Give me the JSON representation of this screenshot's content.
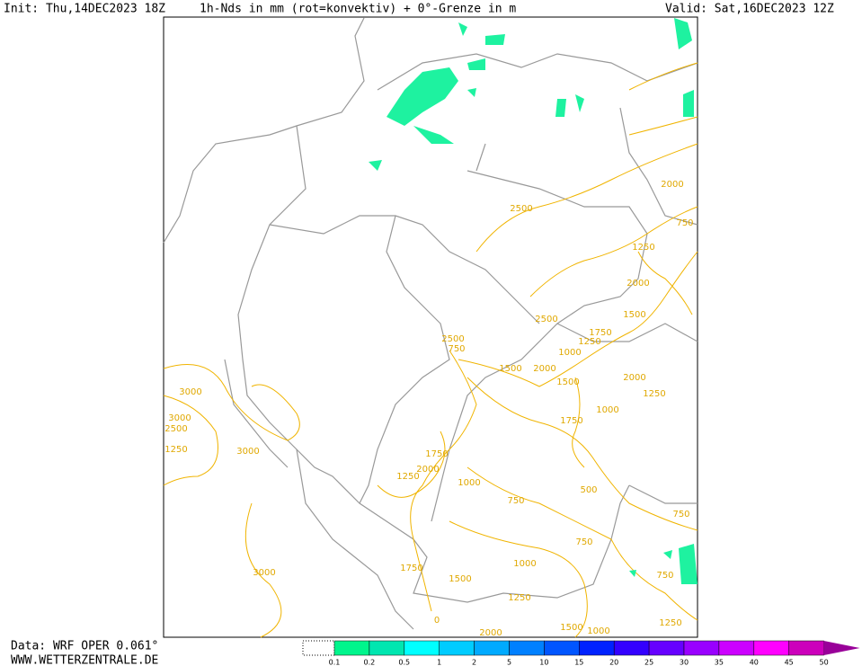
{
  "header": {
    "init": "Init: Thu,14DEC2023 18Z",
    "title": "1h-Nds in mm (rot=konvektiv) + 0°-Grenze in m",
    "valid": "Valid: Sat,16DEC2023 12Z"
  },
  "footer": {
    "data": "Data: WRF OPER 0.061°",
    "site": "WWW.WETTERZENTRALE.DE"
  },
  "legend": {
    "labels": [
      "0.1",
      "0.2",
      "0.5",
      "1",
      "2",
      "5",
      "10",
      "15",
      "20",
      "25",
      "30",
      "35",
      "40",
      "45",
      "50"
    ],
    "colors": [
      "#00f58c",
      "#00e6b0",
      "#00ffff",
      "#00ccff",
      "#00aaff",
      "#0080ff",
      "#0055ff",
      "#0022ff",
      "#3300ff",
      "#6600ff",
      "#9900ff",
      "#cc00ff",
      "#ff00ff",
      "#cc00bb",
      "#990099"
    ]
  },
  "contour_labels": [
    "2500",
    "2000",
    "750",
    "1250",
    "2000",
    "1500",
    "2500",
    "1750",
    "1250",
    "2500",
    "750",
    "1500",
    "2000",
    "1000",
    "1500",
    "2000",
    "1250",
    "1000",
    "1750",
    "3000",
    "3000",
    "2500",
    "1250",
    "3000",
    "1750",
    "1250",
    "2000",
    "1000",
    "750",
    "500",
    "750",
    "750",
    "1000",
    "1500",
    "1750",
    "3000",
    "1250",
    "0",
    "2000",
    "1500",
    "1000",
    "750",
    "1250"
  ]
}
